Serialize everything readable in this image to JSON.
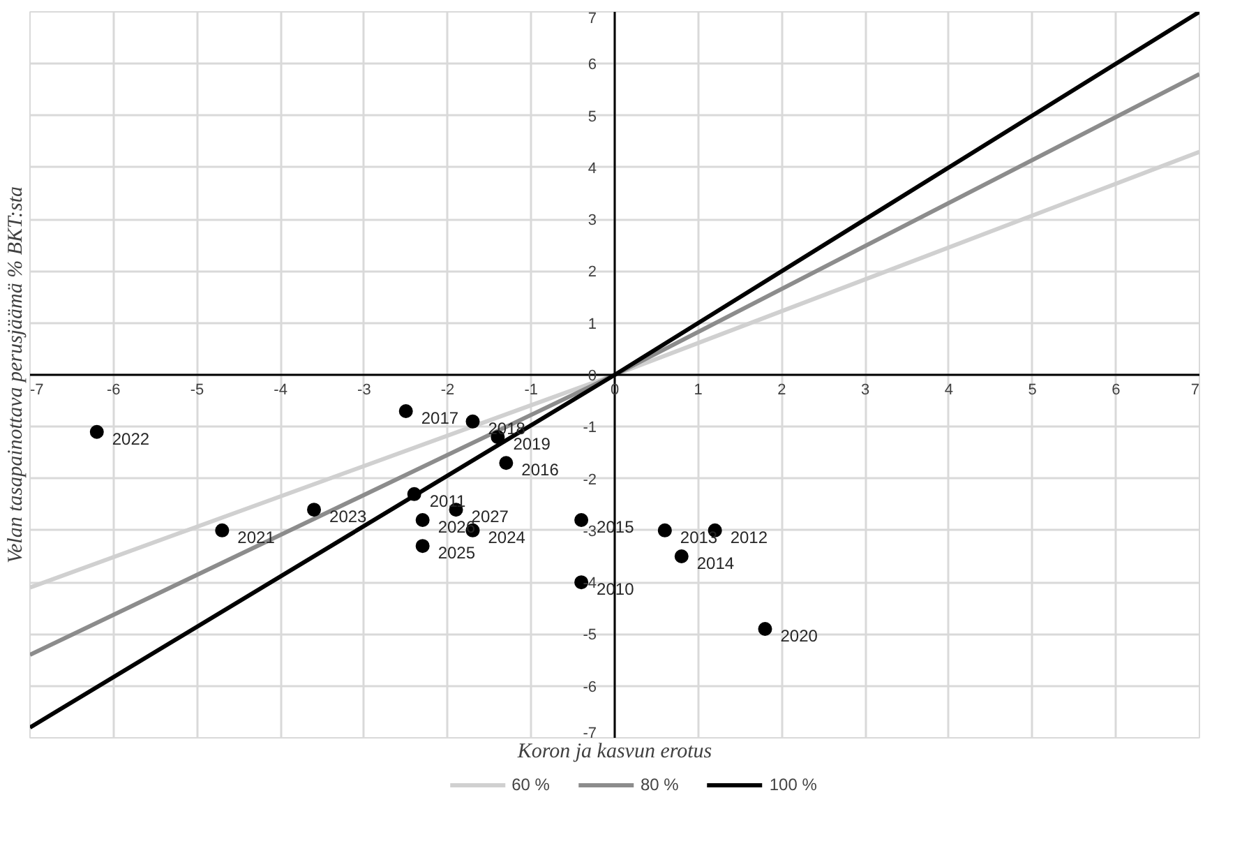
{
  "chart_data": {
    "type": "scatter",
    "xlabel": "Koron ja kasvun erotus",
    "ylabel": "Velan tasapainottava perusjäämä % BKT:sta",
    "xlim": [
      -7,
      7
    ],
    "ylim": [
      -7,
      7
    ],
    "xticks": [
      -7,
      -6,
      -5,
      -4,
      -3,
      -2,
      -1,
      0,
      1,
      2,
      3,
      4,
      5,
      6,
      7
    ],
    "yticks": [
      -7,
      -6,
      -5,
      -4,
      -3,
      -2,
      -1,
      0,
      1,
      2,
      3,
      4,
      5,
      6,
      7
    ],
    "grid": true,
    "legend": "bottom",
    "series": [
      {
        "name": "60 %",
        "type": "line",
        "color": "#d0d0d0",
        "x": [
          -7,
          0,
          7
        ],
        "values": [
          -4.1,
          0,
          4.3
        ]
      },
      {
        "name": "80 %",
        "type": "line",
        "color": "#8c8c8c",
        "x": [
          -7,
          0,
          7
        ],
        "values": [
          -5.4,
          0,
          5.8
        ]
      },
      {
        "name": "100 %",
        "type": "line",
        "color": "#000000",
        "x": [
          -7,
          0,
          7
        ],
        "values": [
          -6.8,
          0,
          7.0
        ]
      },
      {
        "marker": "circle",
        "color": "#000000",
        "x": [
          -6.2,
          -4.7,
          -3.6,
          -2.5,
          -1.7,
          -1.4,
          -1.3,
          -2.4,
          -1.9,
          -2.3,
          -1.7,
          -2.3,
          -0.4,
          -0.4,
          0.6,
          1.2,
          0.8,
          1.8
        ],
        "values": [
          -1.1,
          -3.0,
          -2.6,
          -0.7,
          -0.9,
          -1.2,
          -1.7,
          -2.3,
          -2.6,
          -2.8,
          -3.0,
          -3.3,
          -2.8,
          -4.0,
          -3.0,
          -3.0,
          -3.5,
          -4.9
        ]
      }
    ],
    "annotations": [
      {
        "text": "2022",
        "x": -6.2,
        "y": -1.1
      },
      {
        "text": "2021",
        "x": -4.7,
        "y": -3.0
      },
      {
        "text": "2023",
        "x": -3.6,
        "y": -2.6
      },
      {
        "text": "2017",
        "x": -2.5,
        "y": -0.7
      },
      {
        "text": "2018",
        "x": -1.7,
        "y": -0.9
      },
      {
        "text": "2019",
        "x": -1.4,
        "y": -1.2
      },
      {
        "text": "2016",
        "x": -1.3,
        "y": -1.7
      },
      {
        "text": "2011",
        "x": -2.4,
        "y": -2.3
      },
      {
        "text": "2027",
        "x": -1.9,
        "y": -2.6
      },
      {
        "text": "2026",
        "x": -2.3,
        "y": -2.8
      },
      {
        "text": "2024",
        "x": -1.7,
        "y": -3.0
      },
      {
        "text": "2025",
        "x": -2.3,
        "y": -3.3
      },
      {
        "text": "2015",
        "x": -0.4,
        "y": -2.8
      },
      {
        "text": "2010",
        "x": -0.4,
        "y": -4.0
      },
      {
        "text": "2013",
        "x": 0.6,
        "y": -3.0
      },
      {
        "text": "2012",
        "x": 1.2,
        "y": -3.0
      },
      {
        "text": "2014",
        "x": 0.8,
        "y": -3.5
      },
      {
        "text": "2020",
        "x": 1.8,
        "y": -4.9
      }
    ]
  }
}
